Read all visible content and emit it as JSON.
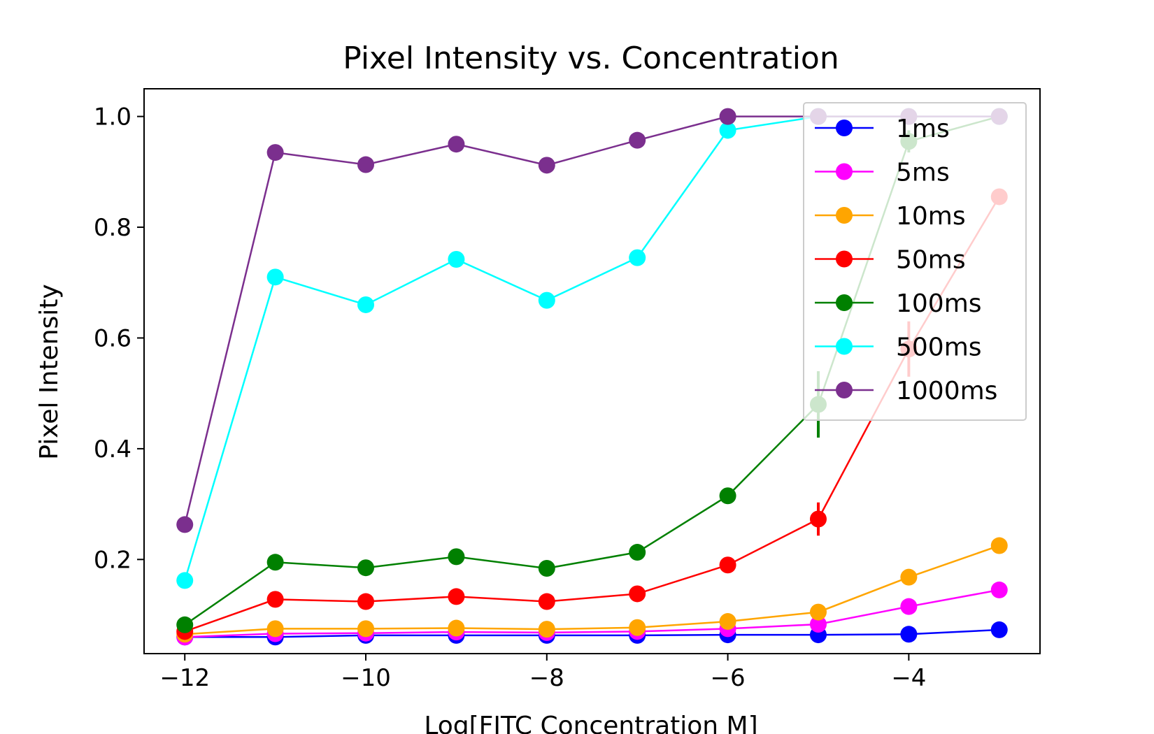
{
  "chart_data": {
    "type": "line",
    "title": "Pixel Intensity vs. Concentration",
    "xlabel": "Log[FITC Concentration M]",
    "ylabel": "Pixel Intensity",
    "xlim": [
      -12.45,
      -2.55
    ],
    "ylim": [
      0.03,
      1.05
    ],
    "x": [
      -12,
      -11,
      -10,
      -9,
      -8,
      -7,
      -6,
      -5,
      -4,
      -3
    ],
    "xticks": [
      -12,
      -10,
      -8,
      -6,
      -4
    ],
    "xtick_labels": [
      "−12",
      "−10",
      "−8",
      "−6",
      "−4"
    ],
    "yticks": [
      0.2,
      0.4,
      0.6,
      0.8,
      1.0
    ],
    "ytick_labels": [
      "0.2",
      "0.4",
      "0.6",
      "0.8",
      "1.0"
    ],
    "grid": false,
    "legend_position": "top-right",
    "series": [
      {
        "name": "1ms",
        "color": "#0000ff",
        "values": [
          0.06,
          0.06,
          0.063,
          0.063,
          0.063,
          0.063,
          0.064,
          0.064,
          0.065,
          0.073
        ]
      },
      {
        "name": "5ms",
        "color": "#ff00ff",
        "values": [
          0.06,
          0.066,
          0.067,
          0.069,
          0.068,
          0.07,
          0.075,
          0.083,
          0.115,
          0.145
        ]
      },
      {
        "name": "10ms",
        "color": "#ffa500",
        "values": [
          0.065,
          0.075,
          0.075,
          0.076,
          0.074,
          0.077,
          0.088,
          0.105,
          0.168,
          0.225
        ]
      },
      {
        "name": "50ms",
        "color": "#ff0000",
        "values": [
          0.07,
          0.128,
          0.124,
          0.133,
          0.124,
          0.138,
          0.19,
          0.273,
          0.58,
          0.855
        ],
        "errors": [
          0,
          0,
          0,
          0,
          0,
          0,
          0,
          0.03,
          0.05,
          0
        ]
      },
      {
        "name": "100ms",
        "color": "#008000",
        "values": [
          0.082,
          0.195,
          0.185,
          0.205,
          0.184,
          0.213,
          0.315,
          0.48,
          0.955,
          1.0
        ],
        "errors": [
          0,
          0,
          0,
          0,
          0,
          0,
          0,
          0.06,
          0.02,
          0
        ]
      },
      {
        "name": "500ms",
        "color": "#00ffff",
        "values": [
          0.162,
          0.71,
          0.66,
          0.742,
          0.668,
          0.745,
          0.975,
          1.0,
          1.0,
          1.0
        ],
        "errors": [
          0,
          0,
          0,
          0,
          0,
          0,
          0.015,
          0,
          0,
          0
        ]
      },
      {
        "name": "1000ms",
        "color": "#7b2f8e",
        "values": [
          0.263,
          0.935,
          0.913,
          0.95,
          0.912,
          0.957,
          1.0,
          1.0,
          1.0,
          1.0
        ]
      }
    ]
  }
}
